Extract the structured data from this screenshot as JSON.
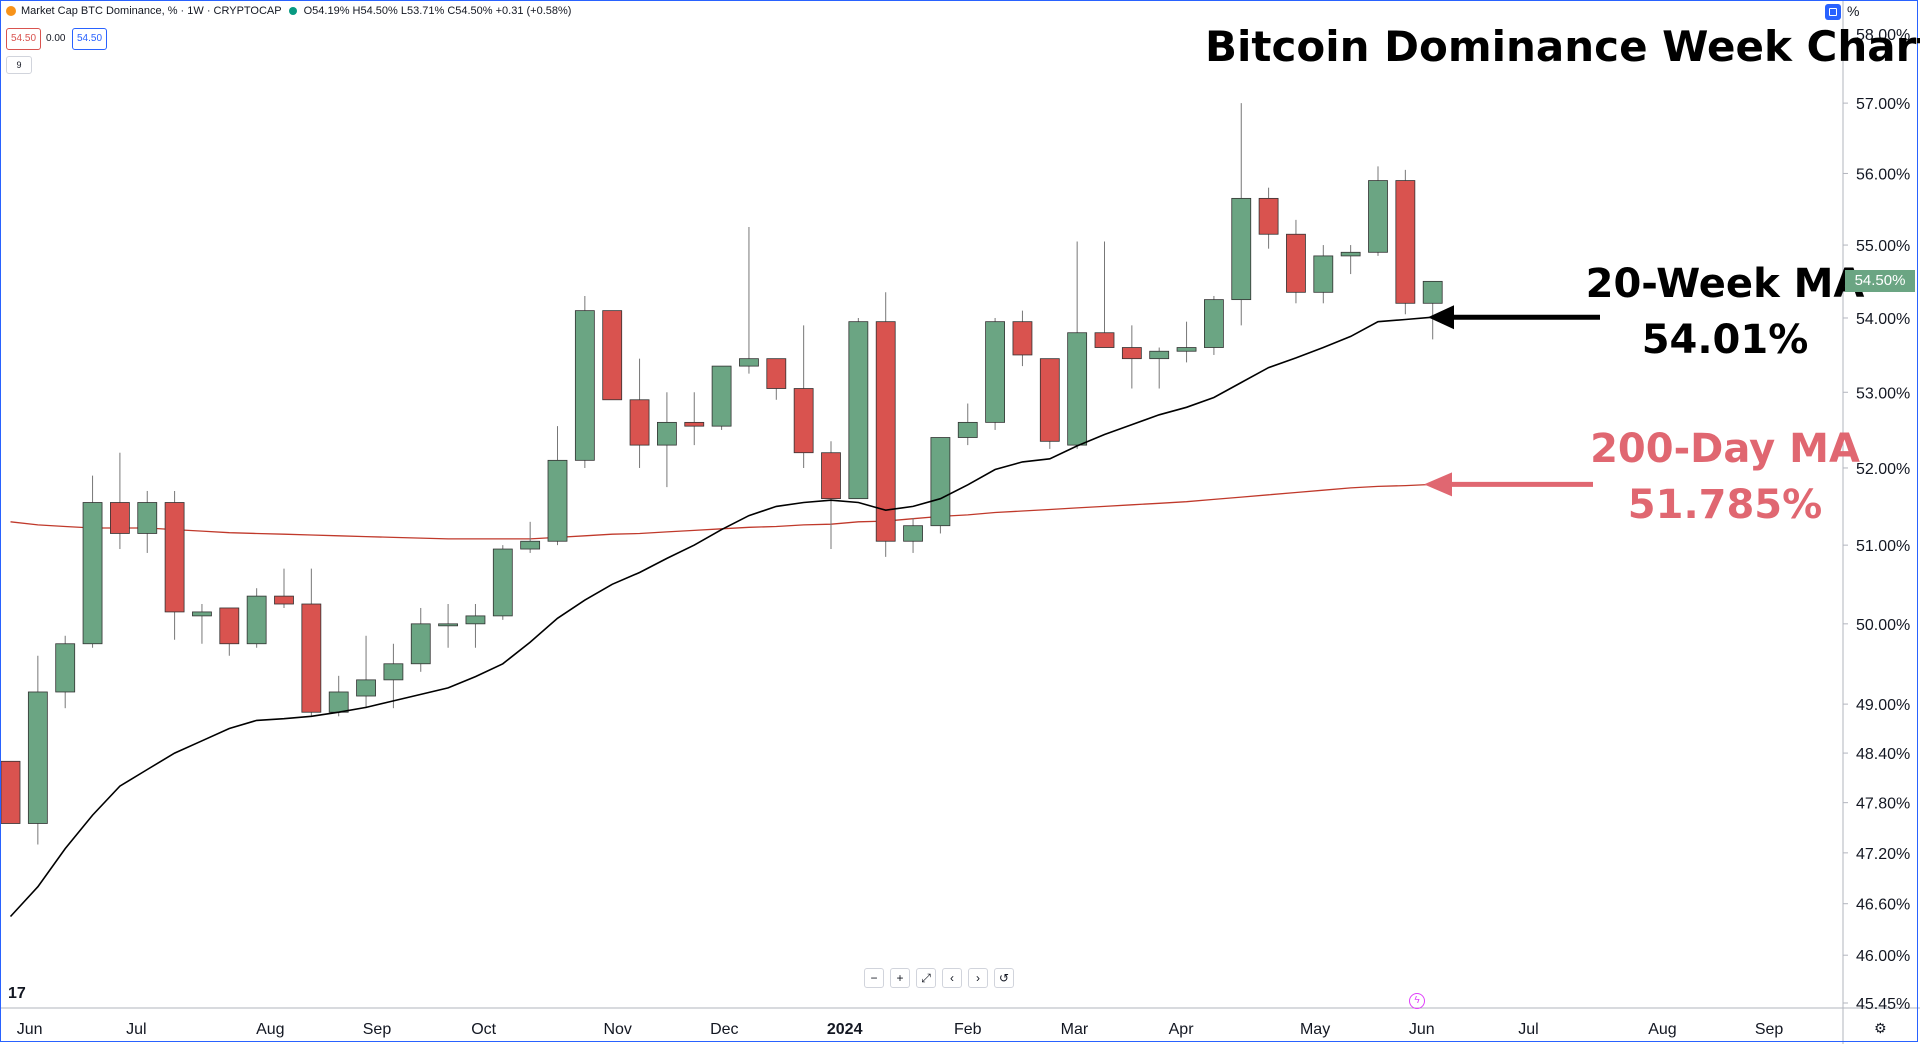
{
  "header": {
    "symbol_title": "Market Cap BTC Dominance, % · 1W · CRYPTOCAP",
    "ohlc": "O54.19% H54.50% L53.71% C54.50% +0.31 (+0.58%)",
    "sell_price": "54.50",
    "spread": "0.00",
    "buy_price": "54.50",
    "indicator_count": "9",
    "scale_unit": "%"
  },
  "title": "Bitcoin Dominance Week Chart",
  "annotations": {
    "ma20_label": "20-Week MA",
    "ma20_value": "54.01%",
    "ma200_label": "200-Day MA",
    "ma200_value": "51.785%"
  },
  "colors": {
    "up": "#6ba583",
    "down": "#d9534f",
    "ma20": "#000000",
    "ma200": "#c0392b",
    "ma200_annotation": "#e06771"
  },
  "toolbar": [
    "−",
    "+",
    "⤢",
    "‹",
    "›",
    "↺"
  ],
  "chart_data": {
    "type": "candlestick",
    "title": "Bitcoin Dominance Week Chart",
    "yscale": "log",
    "ylim": [
      45.45,
      58.0
    ],
    "y_ticks": [
      58.0,
      57.0,
      56.0,
      55.0,
      54.0,
      53.0,
      52.0,
      51.0,
      50.0,
      49.0,
      48.4,
      47.8,
      47.2,
      46.6,
      46.0,
      45.45
    ],
    "y_tick_labels": [
      "58.00%",
      "57.00%",
      "56.00%",
      "55.00%",
      "54.00%",
      "53.00%",
      "52.00%",
      "51.00%",
      "50.00%",
      "49.00%",
      "48.40%",
      "47.80%",
      "47.20%",
      "46.60%",
      "46.00%",
      "45.45%"
    ],
    "last_price_label": "54.50%",
    "x_ticks": [
      {
        "label": "Jun",
        "week": 0.7
      },
      {
        "label": "Jul",
        "week": 4.6
      },
      {
        "label": "Aug",
        "week": 9.5
      },
      {
        "label": "Sep",
        "week": 13.4
      },
      {
        "label": "Oct",
        "week": 17.3
      },
      {
        "label": "Nov",
        "week": 22.2
      },
      {
        "label": "Dec",
        "week": 26.1
      },
      {
        "label": "2024",
        "week": 30.5,
        "bold": true
      },
      {
        "label": "Feb",
        "week": 35.0
      },
      {
        "label": "Mar",
        "week": 38.9
      },
      {
        "label": "Apr",
        "week": 42.8
      },
      {
        "label": "May",
        "week": 47.7
      },
      {
        "label": "Jun",
        "week": 51.6
      },
      {
        "label": "Jul",
        "week": 55.5
      },
      {
        "label": "Aug",
        "week": 60.4
      },
      {
        "label": "Sep",
        "week": 64.3
      }
    ],
    "candles": [
      {
        "o": 48.3,
        "h": 48.3,
        "l": 47.55,
        "c": 47.55
      },
      {
        "o": 47.55,
        "h": 49.6,
        "l": 47.3,
        "c": 49.15
      },
      {
        "o": 49.15,
        "h": 49.85,
        "l": 48.95,
        "c": 49.75
      },
      {
        "o": 49.75,
        "h": 51.9,
        "l": 49.7,
        "c": 51.55
      },
      {
        "o": 51.55,
        "h": 52.2,
        "l": 50.95,
        "c": 51.15
      },
      {
        "o": 51.15,
        "h": 51.7,
        "l": 50.9,
        "c": 51.55
      },
      {
        "o": 51.55,
        "h": 51.7,
        "l": 49.8,
        "c": 50.15
      },
      {
        "o": 50.1,
        "h": 50.25,
        "l": 49.75,
        "c": 50.15
      },
      {
        "o": 50.2,
        "h": 50.2,
        "l": 49.6,
        "c": 49.75
      },
      {
        "o": 49.75,
        "h": 50.45,
        "l": 49.7,
        "c": 50.35
      },
      {
        "o": 50.35,
        "h": 50.7,
        "l": 50.2,
        "c": 50.25
      },
      {
        "o": 50.25,
        "h": 50.7,
        "l": 48.85,
        "c": 48.9
      },
      {
        "o": 48.9,
        "h": 49.35,
        "l": 48.85,
        "c": 49.15
      },
      {
        "o": 49.1,
        "h": 49.85,
        "l": 48.95,
        "c": 49.3
      },
      {
        "o": 49.3,
        "h": 49.75,
        "l": 48.95,
        "c": 49.5
      },
      {
        "o": 49.5,
        "h": 50.2,
        "l": 49.4,
        "c": 50.0
      },
      {
        "o": 50.0,
        "h": 50.25,
        "l": 49.7,
        "c": 50.0
      },
      {
        "o": 50.0,
        "h": 50.25,
        "l": 49.7,
        "c": 50.1
      },
      {
        "o": 50.1,
        "h": 51.0,
        "l": 50.05,
        "c": 50.95
      },
      {
        "o": 50.95,
        "h": 51.3,
        "l": 50.9,
        "c": 51.05
      },
      {
        "o": 51.05,
        "h": 52.55,
        "l": 51.0,
        "c": 52.1
      },
      {
        "o": 52.1,
        "h": 54.3,
        "l": 52.0,
        "c": 54.1
      },
      {
        "o": 54.1,
        "h": 54.1,
        "l": 52.9,
        "c": 52.9
      },
      {
        "o": 52.9,
        "h": 53.45,
        "l": 52.0,
        "c": 52.3
      },
      {
        "o": 52.3,
        "h": 53.0,
        "l": 51.75,
        "c": 52.6
      },
      {
        "o": 52.6,
        "h": 53.0,
        "l": 52.3,
        "c": 52.55
      },
      {
        "o": 52.55,
        "h": 53.35,
        "l": 52.5,
        "c": 53.35
      },
      {
        "o": 53.35,
        "h": 55.25,
        "l": 53.25,
        "c": 53.45
      },
      {
        "o": 53.45,
        "h": 53.45,
        "l": 52.9,
        "c": 53.05
      },
      {
        "o": 53.05,
        "h": 53.9,
        "l": 52.0,
        "c": 52.2
      },
      {
        "o": 52.2,
        "h": 52.35,
        "l": 50.95,
        "c": 51.6
      },
      {
        "o": 51.6,
        "h": 54.0,
        "l": 51.6,
        "c": 53.95
      },
      {
        "o": 53.95,
        "h": 54.35,
        "l": 50.85,
        "c": 51.05
      },
      {
        "o": 51.05,
        "h": 51.35,
        "l": 50.9,
        "c": 51.25
      },
      {
        "o": 51.25,
        "h": 52.4,
        "l": 51.15,
        "c": 52.4
      },
      {
        "o": 52.4,
        "h": 52.85,
        "l": 52.3,
        "c": 52.6
      },
      {
        "o": 52.6,
        "h": 54.0,
        "l": 52.5,
        "c": 53.95
      },
      {
        "o": 53.95,
        "h": 54.1,
        "l": 53.35,
        "c": 53.5
      },
      {
        "o": 53.45,
        "h": 53.45,
        "l": 52.25,
        "c": 52.35
      },
      {
        "o": 52.3,
        "h": 55.05,
        "l": 52.25,
        "c": 53.8
      },
      {
        "o": 53.8,
        "h": 55.05,
        "l": 53.6,
        "c": 53.6
      },
      {
        "o": 53.6,
        "h": 53.9,
        "l": 53.05,
        "c": 53.45
      },
      {
        "o": 53.45,
        "h": 53.6,
        "l": 53.05,
        "c": 53.55
      },
      {
        "o": 53.55,
        "h": 53.95,
        "l": 53.4,
        "c": 53.6
      },
      {
        "o": 53.6,
        "h": 54.3,
        "l": 53.5,
        "c": 54.25
      },
      {
        "o": 54.25,
        "h": 57.0,
        "l": 53.9,
        "c": 55.65
      },
      {
        "o": 55.65,
        "h": 55.8,
        "l": 54.95,
        "c": 55.15
      },
      {
        "o": 55.15,
        "h": 55.35,
        "l": 54.2,
        "c": 54.35
      },
      {
        "o": 54.35,
        "h": 55.0,
        "l": 54.2,
        "c": 54.85
      },
      {
        "o": 54.85,
        "h": 55.0,
        "l": 54.6,
        "c": 54.9
      },
      {
        "o": 54.9,
        "h": 56.1,
        "l": 54.85,
        "c": 55.9
      },
      {
        "o": 55.9,
        "h": 56.05,
        "l": 54.05,
        "c": 54.2
      },
      {
        "o": 54.2,
        "h": 54.5,
        "l": 53.71,
        "c": 54.5
      }
    ],
    "series": [
      {
        "name": "20-Week MA",
        "color": "#000000",
        "start_week": 0,
        "values": [
          46.45,
          46.8,
          47.25,
          47.65,
          48.0,
          48.2,
          48.4,
          48.55,
          48.7,
          48.8,
          48.82,
          48.85,
          48.9,
          48.96,
          49.04,
          49.12,
          49.2,
          49.34,
          49.5,
          49.77,
          50.07,
          50.3,
          50.5,
          50.65,
          50.83,
          51.0,
          51.2,
          51.38,
          51.5,
          51.55,
          51.58,
          51.55,
          51.45,
          51.5,
          51.6,
          51.78,
          51.98,
          52.08,
          52.12,
          52.29,
          52.44,
          52.57,
          52.7,
          52.8,
          52.93,
          53.13,
          53.33,
          53.46,
          53.6,
          53.75,
          53.95,
          53.98,
          54.01
        ]
      },
      {
        "name": "200-Day MA",
        "color": "#c0392b",
        "start_week": 0,
        "values": [
          51.3,
          51.26,
          51.24,
          51.22,
          51.22,
          51.22,
          51.2,
          51.18,
          51.16,
          51.15,
          51.14,
          51.13,
          51.12,
          51.11,
          51.1,
          51.09,
          51.08,
          51.08,
          51.08,
          51.08,
          51.1,
          51.12,
          51.14,
          51.15,
          51.17,
          51.19,
          51.21,
          51.23,
          51.24,
          51.26,
          51.27,
          51.3,
          51.31,
          51.34,
          51.37,
          51.39,
          51.42,
          51.44,
          51.46,
          51.48,
          51.5,
          51.52,
          51.54,
          51.56,
          51.59,
          51.62,
          51.65,
          51.68,
          51.71,
          51.74,
          51.76,
          51.77,
          51.785
        ]
      }
    ],
    "grid": false,
    "legend": "none"
  }
}
